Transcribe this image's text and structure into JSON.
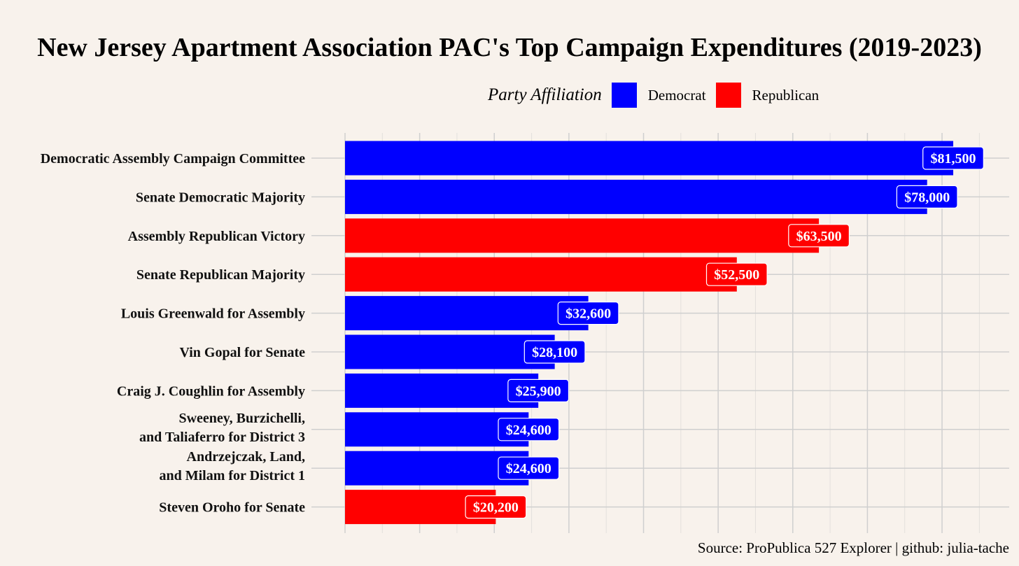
{
  "title": "New Jersey Apartment Association PAC's Top Campaign Expenditures (2019-2023)",
  "legend": {
    "title": "Party Affiliation",
    "items": [
      {
        "label": "Democrat",
        "color": "#0000ff"
      },
      {
        "label": "Republican",
        "color": "#ff0000"
      }
    ]
  },
  "source": "Source: ProPublica 527 Explorer | github: julia-tache",
  "chart_data": {
    "type": "bar",
    "orientation": "horizontal",
    "categories": [
      [
        "Democratic Assembly Campaign Committee"
      ],
      [
        "Senate Democratic Majority"
      ],
      [
        "Assembly Republican Victory"
      ],
      [
        "Senate Republican Majority"
      ],
      [
        "Louis Greenwald for Assembly"
      ],
      [
        "Vin Gopal for Senate"
      ],
      [
        "Craig J. Coughlin for Assembly"
      ],
      [
        "Sweeney, Burzichelli,",
        "and Taliaferro for District 3"
      ],
      [
        "Andrzejczak, Land,",
        "and Milam for District 1"
      ],
      [
        "Steven Oroho for Senate"
      ]
    ],
    "values": [
      81500,
      78000,
      63500,
      52500,
      32600,
      28100,
      25900,
      24600,
      24600,
      20200
    ],
    "value_labels": [
      "$81,500",
      "$78,000",
      "$63,500",
      "$52,500",
      "$32,600",
      "$28,100",
      "$25,900",
      "$24,600",
      "$24,600",
      "$20,200"
    ],
    "party": [
      "Democrat",
      "Democrat",
      "Republican",
      "Republican",
      "Democrat",
      "Democrat",
      "Democrat",
      "Democrat",
      "Democrat",
      "Republican"
    ],
    "xlim": [
      0,
      89000
    ],
    "grid": true,
    "legend_position": "top"
  }
}
